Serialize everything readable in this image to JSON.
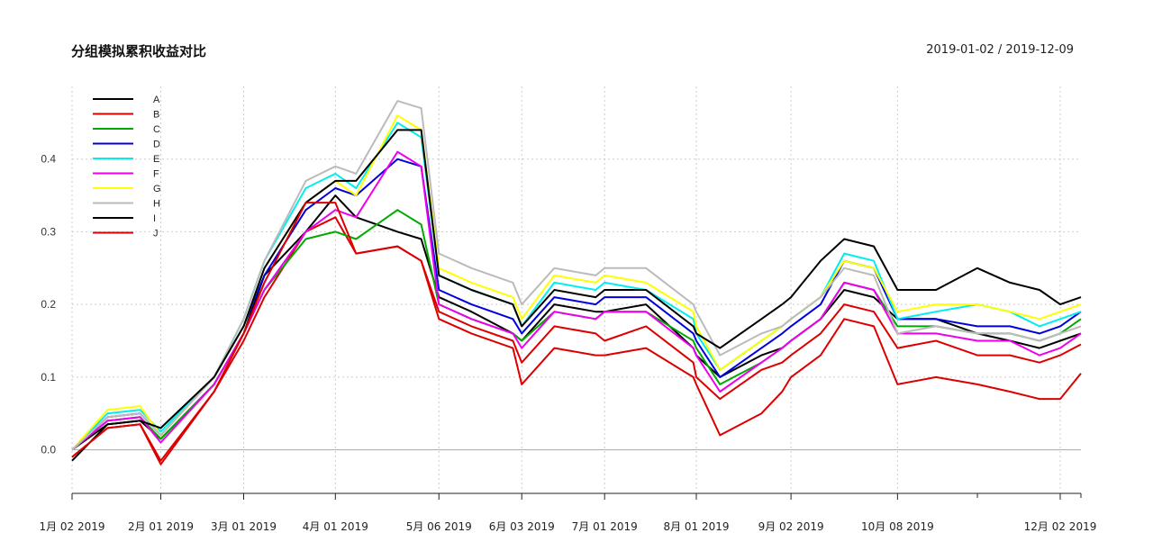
{
  "chart_data": {
    "type": "line",
    "title": "分组模拟累积收益对比",
    "date_range": "2019-01-02 / 2019-12-09",
    "xlabel": "",
    "ylabel": "",
    "ylim": [
      -0.06,
      0.5
    ],
    "grid": true,
    "legend_position": "top-left",
    "x_ticks": [
      "1月 02 2019",
      "2月 01 2019",
      "3月 01 2019",
      "4月 01 2019",
      "5月 06 2019",
      "6月 03 2019",
      "7月 01 2019",
      "8月 01 2019",
      "9月 02 2019",
      "10月 08 2019",
      "12月 02 2019"
    ],
    "y_ticks": [
      "0.0",
      "0.1",
      "0.2",
      "0.3",
      "0.4"
    ],
    "x_dates": [
      "2019-01-02",
      "2019-01-14",
      "2019-01-25",
      "2019-02-01",
      "2019-02-19",
      "2019-03-01",
      "2019-03-08",
      "2019-03-22",
      "2019-04-01",
      "2019-04-08",
      "2019-04-22",
      "2019-04-30",
      "2019-05-06",
      "2019-05-17",
      "2019-05-31",
      "2019-06-03",
      "2019-06-14",
      "2019-06-28",
      "2019-07-01",
      "2019-07-15",
      "2019-07-31",
      "2019-08-01",
      "2019-08-09",
      "2019-08-23",
      "2019-08-30",
      "2019-09-02",
      "2019-09-12",
      "2019-09-20",
      "2019-09-30",
      "2019-10-08",
      "2019-10-21",
      "2019-11-04",
      "2019-11-15",
      "2019-11-25",
      "2019-12-02",
      "2019-12-09"
    ],
    "series": [
      {
        "name": "A",
        "color": "#000000",
        "values": [
          0.0,
          0.035,
          0.04,
          0.015,
          0.09,
          0.16,
          0.24,
          0.3,
          0.35,
          0.32,
          0.3,
          0.29,
          0.21,
          0.19,
          0.16,
          0.15,
          0.2,
          0.19,
          0.19,
          0.2,
          0.14,
          0.13,
          0.1,
          0.13,
          0.14,
          0.15,
          0.18,
          0.22,
          0.21,
          0.18,
          0.18,
          0.16,
          0.15,
          0.14,
          0.15,
          0.16
        ]
      },
      {
        "name": "B",
        "color": "#dd0000",
        "values": [
          -0.01,
          0.03,
          0.035,
          -0.02,
          0.08,
          0.15,
          0.21,
          0.3,
          0.32,
          0.27,
          0.28,
          0.26,
          0.19,
          0.17,
          0.15,
          0.12,
          0.17,
          0.16,
          0.15,
          0.17,
          0.12,
          0.1,
          0.07,
          0.11,
          0.12,
          0.13,
          0.16,
          0.2,
          0.19,
          0.14,
          0.15,
          0.13,
          0.13,
          0.12,
          0.13,
          0.145
        ]
      },
      {
        "name": "C",
        "color": "#00aa00",
        "values": [
          0.0,
          0.04,
          0.045,
          0.015,
          0.09,
          0.16,
          0.22,
          0.29,
          0.3,
          0.29,
          0.33,
          0.31,
          0.2,
          0.18,
          0.16,
          0.15,
          0.19,
          0.18,
          0.19,
          0.19,
          0.15,
          0.14,
          0.09,
          0.12,
          0.14,
          0.15,
          0.18,
          0.23,
          0.22,
          0.17,
          0.17,
          0.16,
          0.16,
          0.15,
          0.16,
          0.18
        ]
      },
      {
        "name": "D",
        "color": "#0000dd",
        "values": [
          0.0,
          0.045,
          0.05,
          0.02,
          0.1,
          0.17,
          0.24,
          0.33,
          0.36,
          0.35,
          0.4,
          0.39,
          0.22,
          0.2,
          0.18,
          0.16,
          0.21,
          0.2,
          0.21,
          0.21,
          0.16,
          0.15,
          0.1,
          0.14,
          0.16,
          0.17,
          0.2,
          0.26,
          0.25,
          0.18,
          0.18,
          0.17,
          0.17,
          0.16,
          0.17,
          0.19
        ]
      },
      {
        "name": "E",
        "color": "#00eeee",
        "values": [
          0.0,
          0.05,
          0.055,
          0.025,
          0.1,
          0.18,
          0.26,
          0.36,
          0.38,
          0.36,
          0.45,
          0.43,
          0.24,
          0.22,
          0.2,
          0.17,
          0.23,
          0.22,
          0.23,
          0.22,
          0.18,
          0.16,
          0.11,
          0.15,
          0.17,
          0.18,
          0.21,
          0.27,
          0.26,
          0.18,
          0.19,
          0.2,
          0.19,
          0.17,
          0.18,
          0.19
        ]
      },
      {
        "name": "F",
        "color": "#ee00ee",
        "values": [
          0.0,
          0.04,
          0.045,
          0.01,
          0.09,
          0.16,
          0.22,
          0.3,
          0.33,
          0.32,
          0.41,
          0.39,
          0.2,
          0.18,
          0.16,
          0.14,
          0.19,
          0.18,
          0.19,
          0.19,
          0.14,
          0.13,
          0.08,
          0.12,
          0.14,
          0.15,
          0.18,
          0.23,
          0.22,
          0.16,
          0.16,
          0.15,
          0.15,
          0.13,
          0.14,
          0.16
        ]
      },
      {
        "name": "G",
        "color": "#ffff00",
        "values": [
          0.0,
          0.055,
          0.06,
          0.02,
          0.1,
          0.17,
          0.25,
          0.34,
          0.37,
          0.35,
          0.46,
          0.44,
          0.25,
          0.23,
          0.21,
          0.18,
          0.24,
          0.23,
          0.24,
          0.23,
          0.19,
          0.17,
          0.11,
          0.15,
          0.17,
          0.18,
          0.21,
          0.26,
          0.25,
          0.19,
          0.2,
          0.2,
          0.19,
          0.18,
          0.19,
          0.2
        ]
      },
      {
        "name": "H",
        "color": "#bbbbbb",
        "values": [
          0.0,
          0.045,
          0.05,
          0.02,
          0.1,
          0.18,
          0.26,
          0.37,
          0.39,
          0.38,
          0.48,
          0.47,
          0.27,
          0.25,
          0.23,
          0.2,
          0.25,
          0.24,
          0.25,
          0.25,
          0.2,
          0.19,
          0.13,
          0.16,
          0.17,
          0.18,
          0.21,
          0.25,
          0.24,
          0.16,
          0.17,
          0.16,
          0.16,
          0.15,
          0.16,
          0.17
        ]
      },
      {
        "name": "I",
        "color": "#000000",
        "values": [
          -0.015,
          0.035,
          0.04,
          0.03,
          0.1,
          0.17,
          0.25,
          0.34,
          0.37,
          0.37,
          0.44,
          0.44,
          0.24,
          0.22,
          0.2,
          0.17,
          0.22,
          0.21,
          0.22,
          0.22,
          0.17,
          0.16,
          0.14,
          0.18,
          0.2,
          0.21,
          0.26,
          0.29,
          0.28,
          0.22,
          0.22,
          0.25,
          0.23,
          0.22,
          0.2,
          0.21
        ]
      },
      {
        "name": "J",
        "color": "#dd0000",
        "values": [
          -0.01,
          0.03,
          0.035,
          -0.015,
          0.08,
          0.16,
          0.23,
          0.34,
          0.34,
          0.27,
          0.28,
          0.26,
          0.18,
          0.16,
          0.14,
          0.09,
          0.14,
          0.13,
          0.13,
          0.14,
          0.1,
          0.09,
          0.02,
          0.05,
          0.08,
          0.1,
          0.13,
          0.18,
          0.17,
          0.09,
          0.1,
          0.09,
          0.08,
          0.07,
          0.07,
          0.105
        ]
      }
    ]
  }
}
